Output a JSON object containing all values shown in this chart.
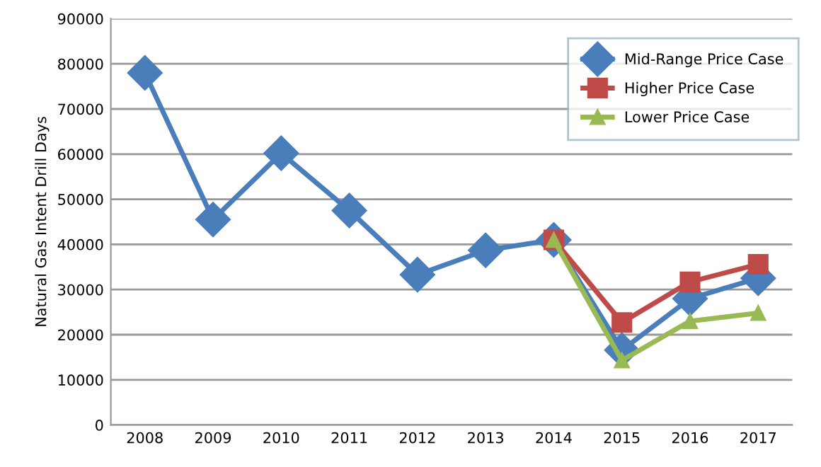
{
  "chart_data": {
    "type": "line",
    "ylabel": "Natural Gas Intent Drill Days",
    "categories": [
      "2008",
      "2009",
      "2010",
      "2011",
      "2012",
      "2013",
      "2014",
      "2015",
      "2016",
      "2017"
    ],
    "series": [
      {
        "name": "Mid-Range Price Case",
        "color": "#4a7ebb",
        "marker": "diamond",
        "values": [
          78000,
          45500,
          60200,
          47500,
          33300,
          38700,
          41000,
          16600,
          28000,
          32500
        ]
      },
      {
        "name": "Higher Price Case",
        "color": "#be4b48",
        "marker": "square",
        "values": [
          null,
          null,
          null,
          null,
          null,
          null,
          41000,
          22700,
          31700,
          35600
        ]
      },
      {
        "name": "Lower Price Case",
        "color": "#98b954",
        "marker": "triangle",
        "values": [
          null,
          null,
          null,
          null,
          null,
          null,
          41000,
          14300,
          23000,
          24800
        ]
      }
    ],
    "ylim": [
      0,
      90000
    ],
    "yticks": [
      0,
      10000,
      20000,
      30000,
      40000,
      50000,
      60000,
      70000,
      80000,
      90000
    ],
    "grid": "y",
    "legend": "top right",
    "line_style": "solid"
  }
}
